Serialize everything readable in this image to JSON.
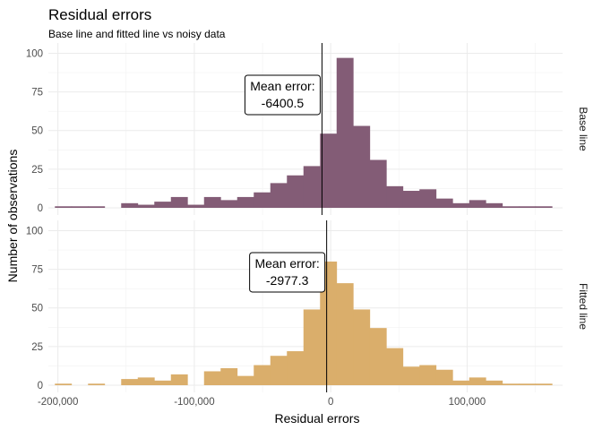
{
  "chart_data": {
    "type": "bar",
    "title": "Residual errors",
    "subtitle": "Base line and fitted line vs noisy data",
    "xlabel": "Residual errors",
    "ylabel": "Number of observations",
    "xlim": [
      -207000,
      170000
    ],
    "ylim": [
      0,
      102
    ],
    "x_ticks": [
      -200000,
      -100000,
      0,
      100000
    ],
    "x_tick_labels": [
      "-200,000",
      "-100,000",
      "0",
      "100,000"
    ],
    "y_ticks": [
      0,
      25,
      50,
      75,
      100
    ],
    "y_tick_labels": [
      "0",
      "25",
      "50",
      "75",
      "100"
    ],
    "bin_width": 12150,
    "bin_centers": [
      -196150,
      -184000,
      -171850,
      -159700,
      -147550,
      -135400,
      -123250,
      -111100,
      -98950,
      -86800,
      -74650,
      -62500,
      -50350,
      -38200,
      -26050,
      -13900,
      -1750,
      10400,
      22550,
      34700,
      46850,
      59000,
      71150,
      83300,
      95450,
      107600,
      119750,
      131900,
      144050,
      156200
    ],
    "grid": true,
    "panels": [
      {
        "name": "Base line",
        "color": "#835c76",
        "values": [
          1,
          1,
          1,
          0,
          3,
          2,
          4,
          7,
          2,
          7,
          5,
          7,
          10,
          16,
          21,
          27,
          48,
          97,
          53,
          31,
          14,
          11,
          12,
          6,
          3,
          5,
          3,
          1,
          1,
          1
        ],
        "mean_error": -6400.5,
        "annotation": [
          "Mean error:",
          "-6400.5"
        ]
      },
      {
        "name": "Fitted line",
        "color": "#daae6b",
        "values": [
          1,
          0,
          1,
          0,
          4,
          5,
          3,
          7,
          0,
          9,
          11,
          6,
          13,
          19,
          22,
          49,
          80,
          66,
          49,
          37,
          24,
          12,
          13,
          10,
          3,
          5,
          3,
          1,
          1,
          1
        ],
        "mean_error": -2977.3,
        "annotation": [
          "Mean error:",
          "-2977.3"
        ]
      }
    ],
    "colors": {
      "panel_strip_text": "#1a1a1a",
      "vline": "#000000"
    }
  }
}
